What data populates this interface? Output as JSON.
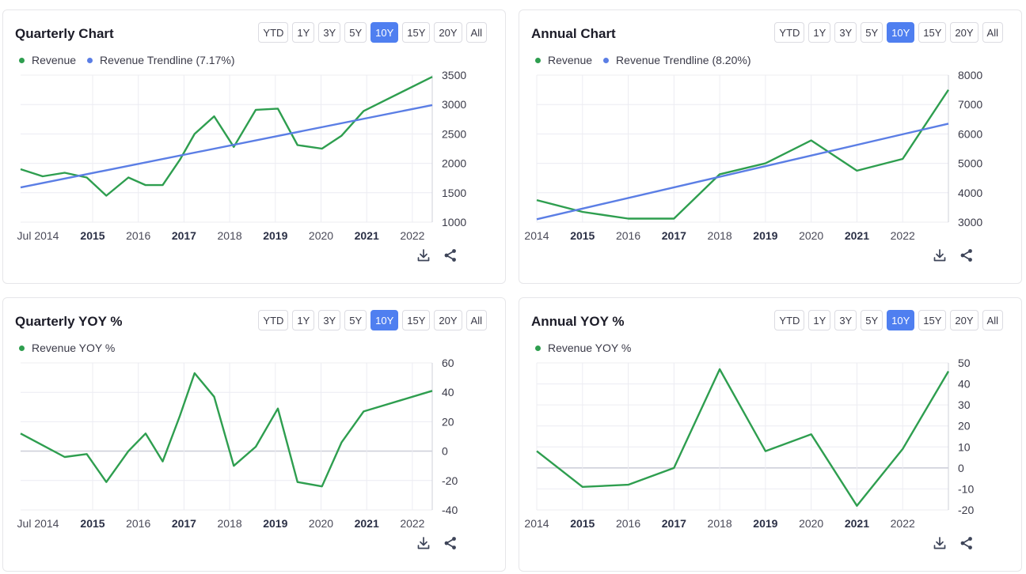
{
  "range_options": [
    "YTD",
    "1Y",
    "3Y",
    "5Y",
    "10Y",
    "15Y",
    "20Y",
    "All"
  ],
  "active_range": "10Y",
  "colors": {
    "revenue": "#2e9e4f",
    "trendline": "#5b7ee5",
    "active": "#4f7ff0"
  },
  "icons": {
    "download": "download-icon",
    "share": "share-icon"
  },
  "cards": {
    "quarterly_chart": {
      "title": "Quarterly Chart",
      "legend": [
        "Revenue",
        "Revenue Trendline (7.17%)"
      ]
    },
    "annual_chart": {
      "title": "Annual Chart",
      "legend": [
        "Revenue",
        "Revenue Trendline (8.20%)"
      ]
    },
    "quarterly_yoy": {
      "title": "Quarterly YOY %",
      "legend": [
        "Revenue YOY %"
      ]
    },
    "annual_yoy": {
      "title": "Annual YOY %",
      "legend": [
        "Revenue YOY %"
      ]
    }
  },
  "chart_data": [
    {
      "id": "quarterly_chart",
      "type": "line",
      "title": "Quarterly Chart",
      "x_tick_labels": [
        "Jul 2014",
        "2015",
        "2016",
        "2017",
        "2018",
        "2019",
        "2020",
        "2021",
        "2022"
      ],
      "x_tick_bold": [
        false,
        true,
        false,
        true,
        false,
        true,
        false,
        true,
        false
      ],
      "x": [
        2014.5,
        2014.95,
        2015.45,
        2015.95,
        2016.45,
        2016.95,
        2017.45,
        2017.95,
        2018.45,
        2018.95,
        2019.45,
        2019.95,
        2020.45,
        2020.95,
        2021.45,
        2021.95,
        2022.45
      ],
      "xlim": [
        2014.45,
        2022.85
      ],
      "ylim": [
        1000,
        3500
      ],
      "y_ticks": [
        1000,
        1500,
        2000,
        2500,
        3000,
        3500
      ],
      "grid": true,
      "series": [
        {
          "name": "Revenue",
          "values": [
            1900,
            1780,
            1840,
            1760,
            1450,
            1760,
            1630,
            1630,
            2060,
            2500,
            2800,
            2280,
            2910,
            2930,
            2310,
            2250,
            2470,
            2890,
            3470
          ],
          "x": [
            2014.45,
            2014.9,
            2015.35,
            2015.8,
            2016.2,
            2016.65,
            2017.0,
            2017.35,
            2017.7,
            2018.0,
            2018.4,
            2018.8,
            2019.25,
            2019.7,
            2020.1,
            2020.6,
            2021.0,
            2021.45,
            2022.85
          ]
        },
        {
          "name": "Revenue Trendline (7.17%)",
          "trend": true,
          "values": [
            1590,
            2990
          ],
          "x": [
            2014.45,
            2022.85
          ]
        }
      ],
      "legend_position": "top-left"
    },
    {
      "id": "annual_chart",
      "type": "line",
      "title": "Annual Chart",
      "x_tick_labels": [
        "2014",
        "2015",
        "2016",
        "2017",
        "2018",
        "2019",
        "2020",
        "2021",
        "2022"
      ],
      "x_tick_bold": [
        false,
        true,
        false,
        true,
        false,
        true,
        false,
        true,
        false
      ],
      "ylim": [
        3000,
        8000
      ],
      "y_ticks": [
        3000,
        4000,
        5000,
        6000,
        7000,
        8000
      ],
      "grid": true,
      "series": [
        {
          "name": "Revenue",
          "values": [
            3750,
            3350,
            3120,
            3120,
            4630,
            5000,
            5780,
            4750,
            5150,
            7500
          ],
          "x": [
            2014,
            2015,
            2016,
            2017,
            2018,
            2019,
            2020,
            2021,
            2022,
            2023
          ]
        },
        {
          "name": "Revenue Trendline (8.20%)",
          "trend": true,
          "values": [
            3100,
            6350
          ],
          "x": [
            2014,
            2023
          ]
        }
      ],
      "xlim": [
        2014,
        2023
      ],
      "legend_position": "top-left"
    },
    {
      "id": "quarterly_yoy",
      "type": "line",
      "title": "Quarterly YOY %",
      "x_tick_labels": [
        "Jul 2014",
        "2015",
        "2016",
        "2017",
        "2018",
        "2019",
        "2020",
        "2021",
        "2022"
      ],
      "x_tick_bold": [
        false,
        true,
        false,
        true,
        false,
        true,
        false,
        true,
        false
      ],
      "ylim": [
        -40,
        60
      ],
      "y_ticks": [
        -40,
        -20,
        0,
        20,
        40,
        60
      ],
      "grid": true,
      "series": [
        {
          "name": "Revenue YOY %",
          "values": [
            12,
            4,
            -4,
            -2,
            -21,
            0,
            12,
            -7,
            24,
            53,
            37,
            -10,
            3,
            29,
            -21,
            -24,
            6,
            27,
            41
          ],
          "x": [
            2014.45,
            2014.9,
            2015.35,
            2015.8,
            2016.2,
            2016.65,
            2017.0,
            2017.35,
            2017.7,
            2018.0,
            2018.4,
            2018.8,
            2019.25,
            2019.7,
            2020.1,
            2020.6,
            2021.0,
            2021.45,
            2022.85
          ]
        }
      ],
      "xlim": [
        2014.45,
        2022.85
      ],
      "legend_position": "top-left"
    },
    {
      "id": "annual_yoy",
      "type": "line",
      "title": "Annual YOY %",
      "x_tick_labels": [
        "2014",
        "2015",
        "2016",
        "2017",
        "2018",
        "2019",
        "2020",
        "2021",
        "2022"
      ],
      "x_tick_bold": [
        false,
        true,
        false,
        true,
        false,
        true,
        false,
        true,
        false
      ],
      "ylim": [
        -20,
        50
      ],
      "y_ticks": [
        -20,
        -10,
        0,
        10,
        20,
        30,
        40,
        50
      ],
      "grid": true,
      "series": [
        {
          "name": "Revenue YOY %",
          "values": [
            8,
            -9,
            -8,
            0,
            47,
            8,
            16,
            -18,
            9,
            46
          ],
          "x": [
            2014,
            2015,
            2016,
            2017,
            2018,
            2019,
            2020,
            2021,
            2022,
            2023
          ]
        }
      ],
      "xlim": [
        2014,
        2023
      ],
      "legend_position": "top-left"
    }
  ]
}
